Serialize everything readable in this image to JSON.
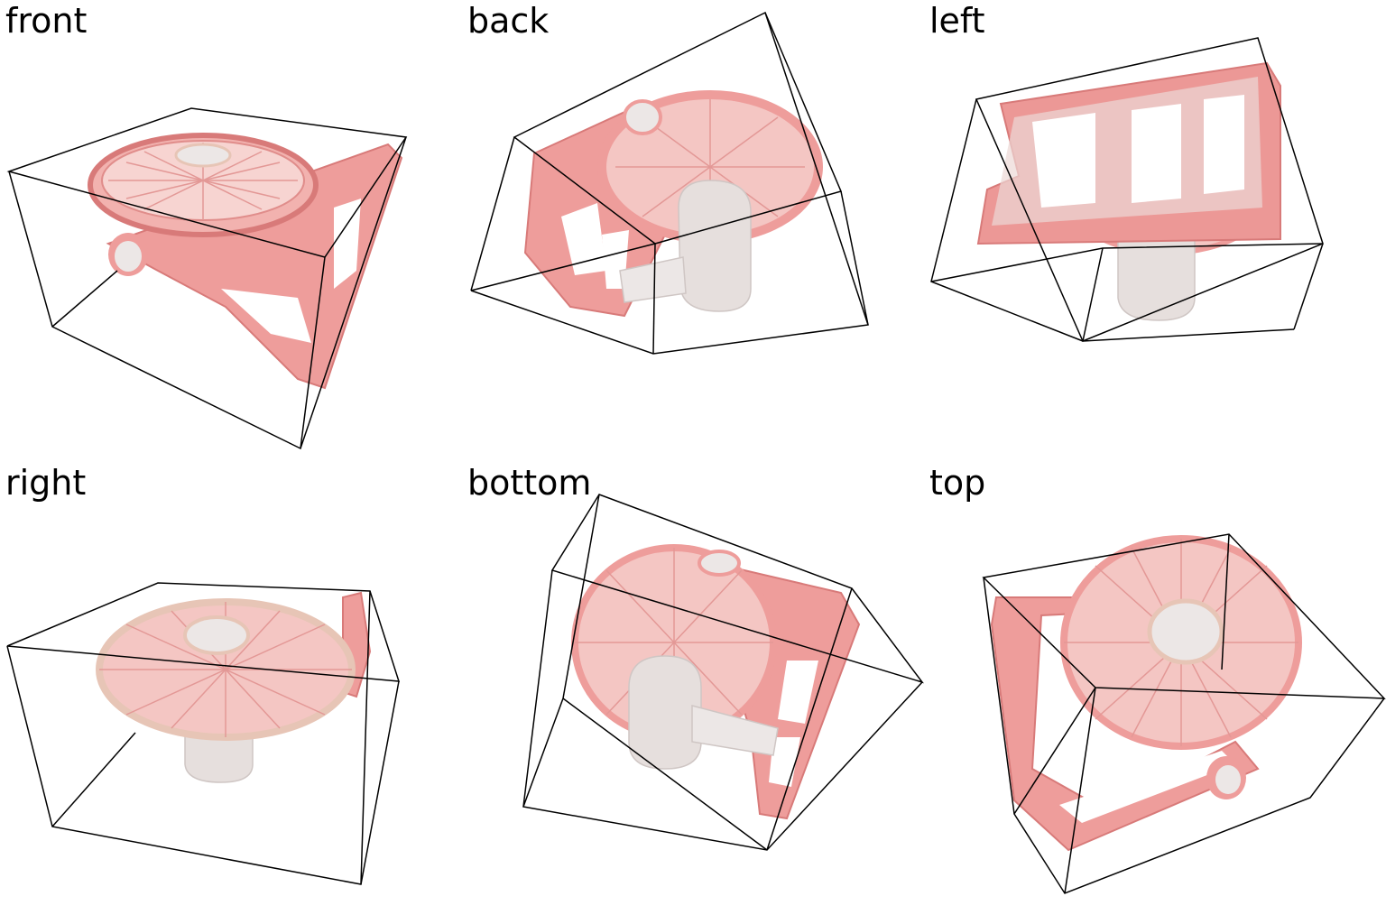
{
  "views": [
    {
      "label": "front"
    },
    {
      "label": "back"
    },
    {
      "label": "left"
    },
    {
      "label": "right"
    },
    {
      "label": "bottom"
    },
    {
      "label": "top"
    }
  ],
  "colors": {
    "shell_pink": "#ee9d9b",
    "shell_dark": "#d87a79",
    "white_part": "#ece7e6",
    "grey_part": "#d9d2d1",
    "box_line": "#000000",
    "background": "#ffffff"
  },
  "icons": [
    "desk-fan-render"
  ]
}
